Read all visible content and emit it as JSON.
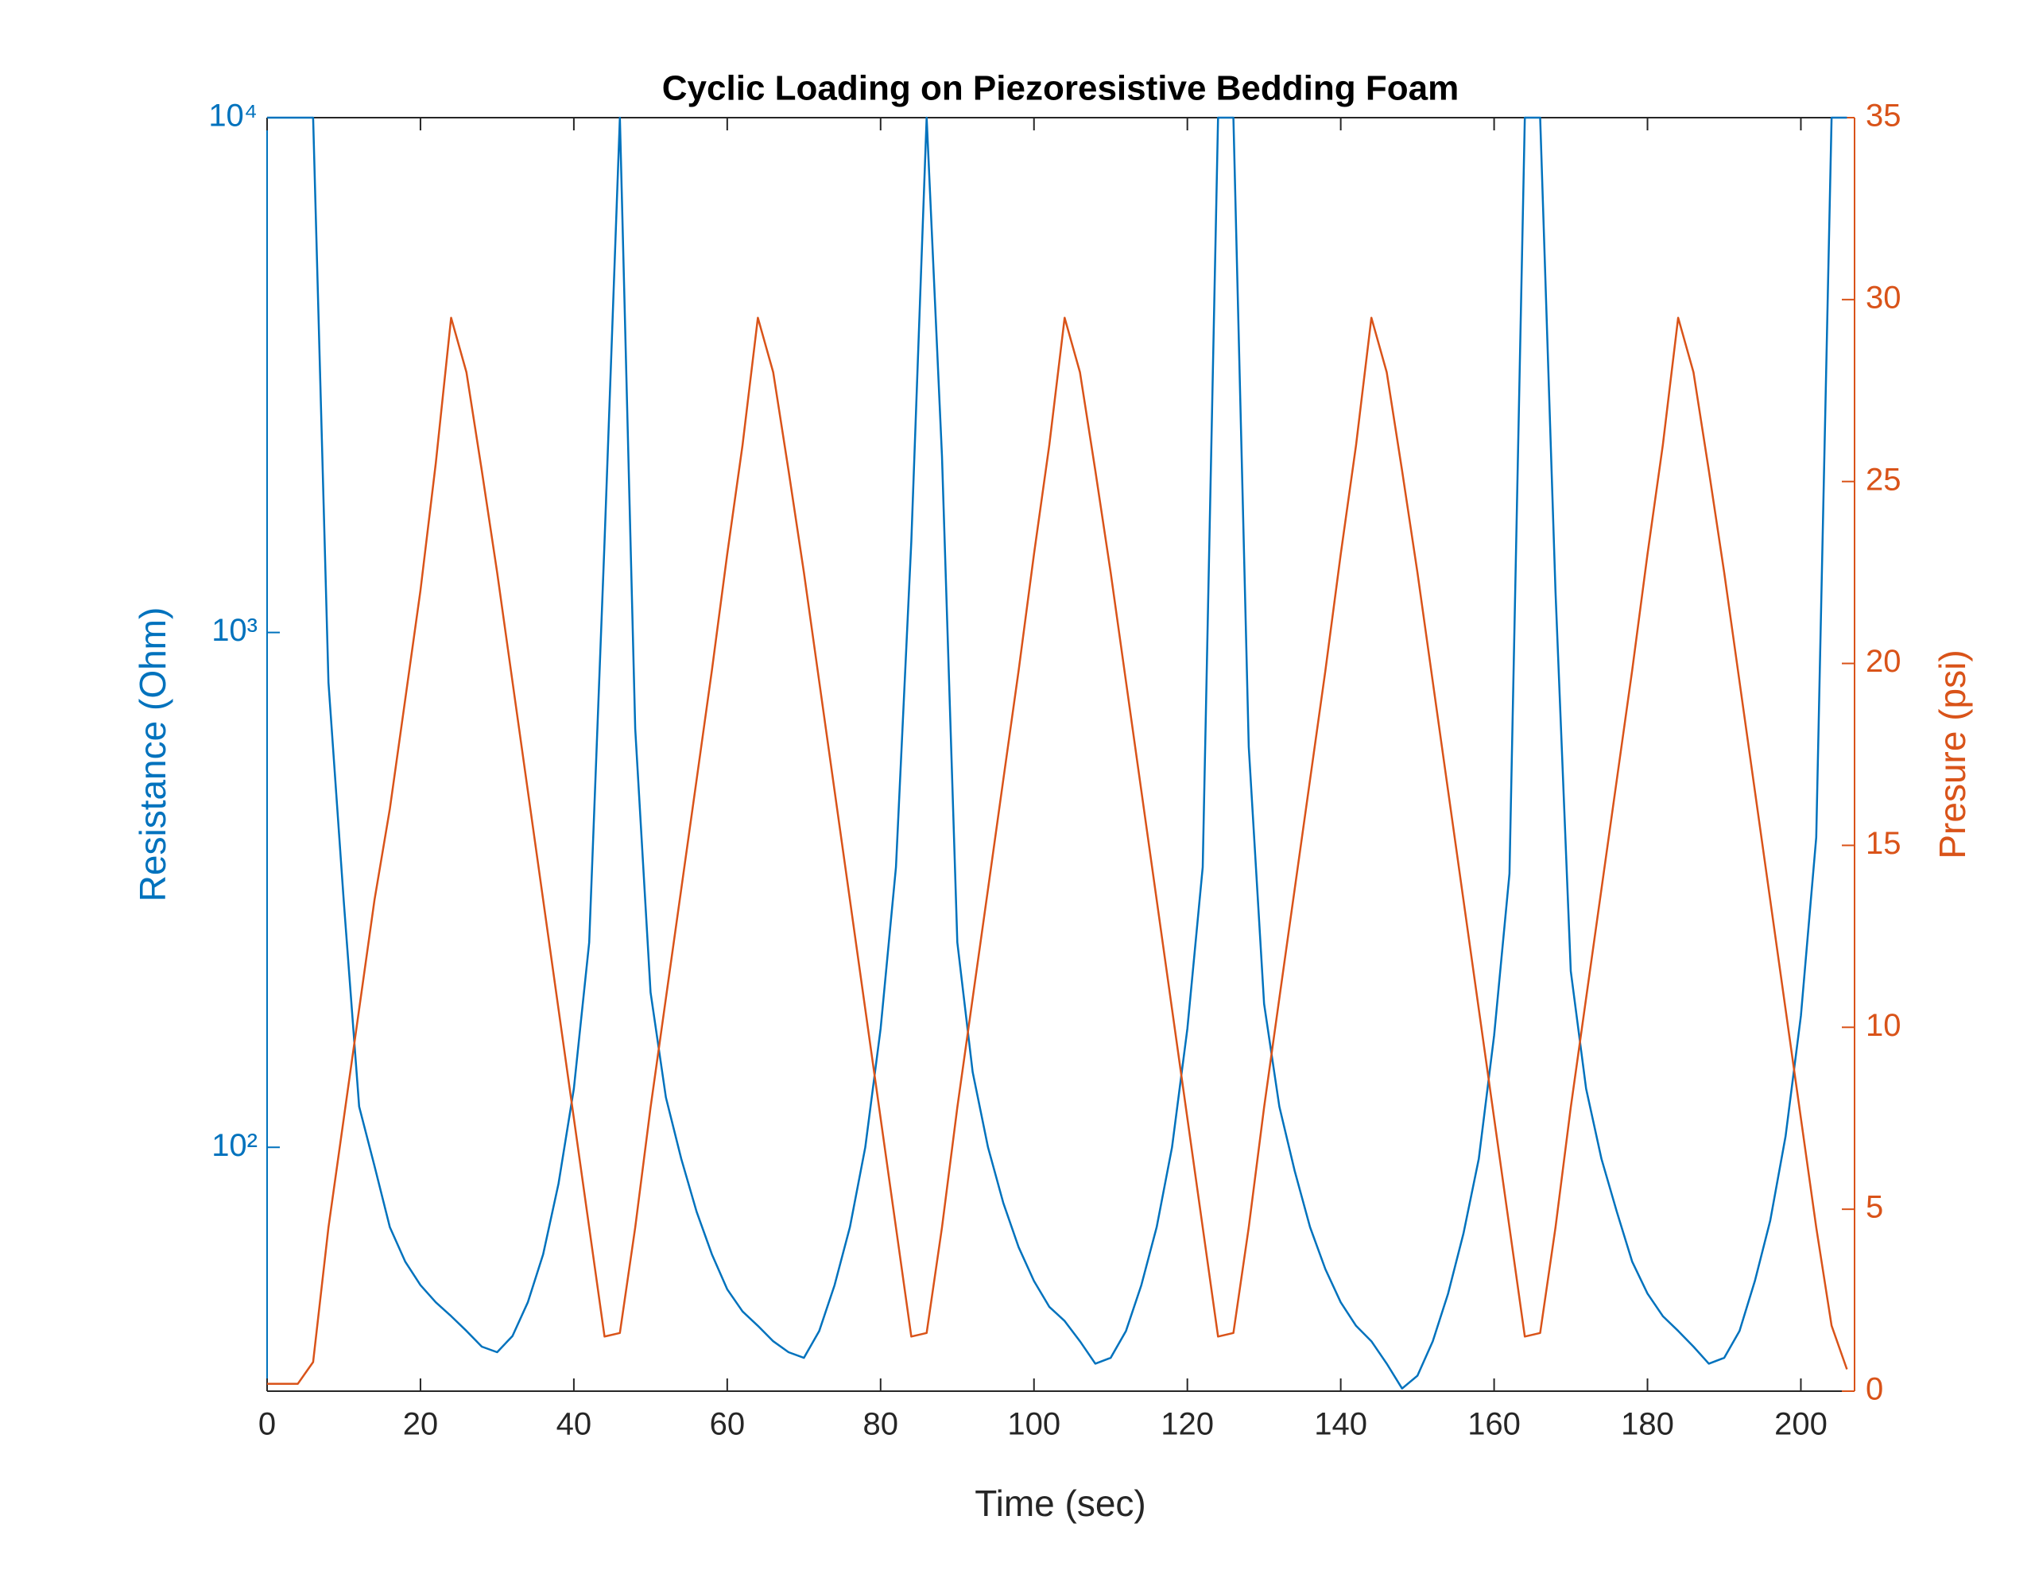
{
  "chart_data": {
    "type": "line",
    "title": "Cyclic Loading on Piezoresistive Bedding Foam",
    "xlabel": "Time (sec)",
    "ylabel": "Resistance (Ohm)",
    "y2label": "Presure (psi)",
    "x": [
      0,
      2,
      4,
      6,
      8,
      10,
      12,
      14,
      16,
      18,
      20,
      22,
      24,
      26,
      28,
      30,
      32,
      34,
      36,
      38,
      40,
      42,
      44,
      46,
      48,
      50,
      52,
      54,
      56,
      58,
      60,
      62,
      64,
      66,
      68,
      70,
      72,
      74,
      76,
      78,
      80,
      82,
      84,
      86,
      88,
      90,
      92,
      94,
      96,
      98,
      100,
      102,
      104,
      106,
      108,
      110,
      112,
      114,
      116,
      118,
      120,
      122,
      124,
      126,
      128,
      130,
      132,
      134,
      136,
      138,
      140,
      142,
      144,
      146,
      148,
      150,
      152,
      154,
      156,
      158,
      160,
      162,
      164,
      166,
      168,
      170,
      172,
      174,
      176,
      178,
      180,
      182,
      184,
      186,
      188,
      190,
      192,
      194,
      196,
      198,
      200,
      202,
      204,
      206
    ],
    "series": [
      {
        "color": "#0072BD",
        "axis": "y",
        "values": [
          10000,
          10000,
          10000,
          10000,
          800,
          300,
          120,
          92,
          70,
          60,
          54,
          50,
          47,
          44,
          41,
          40,
          43,
          50,
          62,
          85,
          130,
          250,
          1500,
          10000,
          650,
          200,
          125,
          95,
          75,
          62,
          53,
          48,
          45,
          42,
          40,
          39,
          44,
          54,
          70,
          100,
          170,
          350,
          1500,
          10000,
          2200,
          250,
          140,
          100,
          78,
          64,
          55,
          49,
          46,
          42,
          38,
          39,
          44,
          54,
          70,
          100,
          170,
          350,
          10000,
          10000,
          600,
          190,
          120,
          90,
          70,
          58,
          50,
          45,
          42,
          38,
          34,
          36,
          42,
          52,
          68,
          95,
          165,
          340,
          10000,
          10000,
          1200,
          220,
          130,
          95,
          75,
          60,
          52,
          47,
          44,
          41,
          38,
          39,
          44,
          55,
          72,
          105,
          180,
          400,
          10000,
          10000
        ]
      },
      {
        "color": "#D95319",
        "axis": "y2",
        "values": [
          0.2,
          0.2,
          0.2,
          0.8,
          4.5,
          7.5,
          10.5,
          13.5,
          16,
          19,
          22,
          25.5,
          29.5,
          28,
          25.3,
          22.5,
          19.5,
          16.5,
          13.5,
          10.5,
          7.5,
          4.5,
          1.5,
          1.6,
          4.5,
          7.8,
          10.8,
          13.8,
          16.8,
          19.8,
          23,
          26,
          29.5,
          28,
          25.3,
          22.5,
          19.5,
          16.5,
          13.5,
          10.5,
          7.5,
          4.5,
          1.5,
          1.6,
          4.5,
          7.8,
          10.8,
          13.8,
          16.8,
          19.8,
          23,
          26,
          29.5,
          28,
          25.3,
          22.5,
          19.5,
          16.5,
          13.5,
          10.5,
          7.5,
          4.5,
          1.5,
          1.6,
          4.5,
          7.8,
          10.8,
          13.8,
          16.8,
          19.8,
          23,
          26,
          29.5,
          28,
          25.3,
          22.5,
          19.5,
          16.5,
          13.5,
          10.5,
          7.5,
          4.5,
          1.5,
          1.6,
          4.5,
          7.8,
          10.8,
          13.8,
          16.8,
          19.8,
          23,
          26,
          29.5,
          28,
          25.3,
          22.5,
          19.5,
          16.5,
          13.5,
          10.5,
          7.5,
          4.5,
          1.8,
          0.6
        ]
      }
    ],
    "xlim": [
      0,
      207
    ],
    "xticks": [
      0,
      20,
      40,
      60,
      80,
      100,
      120,
      140,
      160,
      180,
      200
    ],
    "ylim": [
      33.6,
      10000
    ],
    "yscale": "log",
    "yticks": [
      {
        "value": 100,
        "label": "10²"
      },
      {
        "value": 1000,
        "label": "10³"
      },
      {
        "value": 10000,
        "label": "10⁴"
      }
    ],
    "y2lim": [
      0,
      35
    ],
    "y2ticks": [
      0,
      5,
      10,
      15,
      20,
      25,
      30,
      35
    ]
  }
}
